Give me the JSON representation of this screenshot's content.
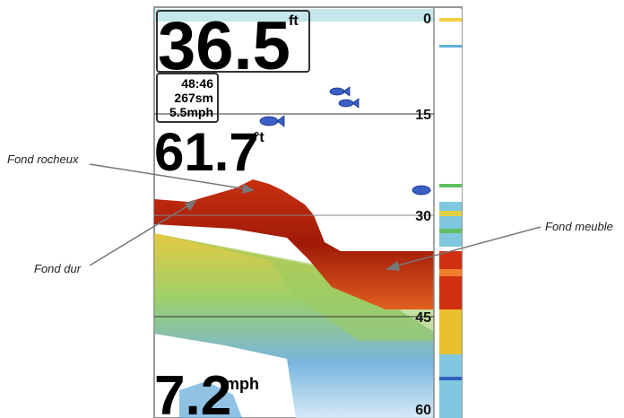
{
  "display": {
    "depth": "36.5",
    "depth_unit": "ft",
    "time": "48:46",
    "distance": "267sm",
    "speed_small": "5.5mph",
    "temperature": "61.7",
    "temperature_unit": "°t",
    "speed": "7.2",
    "speed_unit": "mph"
  },
  "depth_scale": [
    0,
    15,
    30,
    45,
    60
  ],
  "callouts": [
    "Fond rocheux",
    "Fond dur",
    "Fond meuble"
  ]
}
